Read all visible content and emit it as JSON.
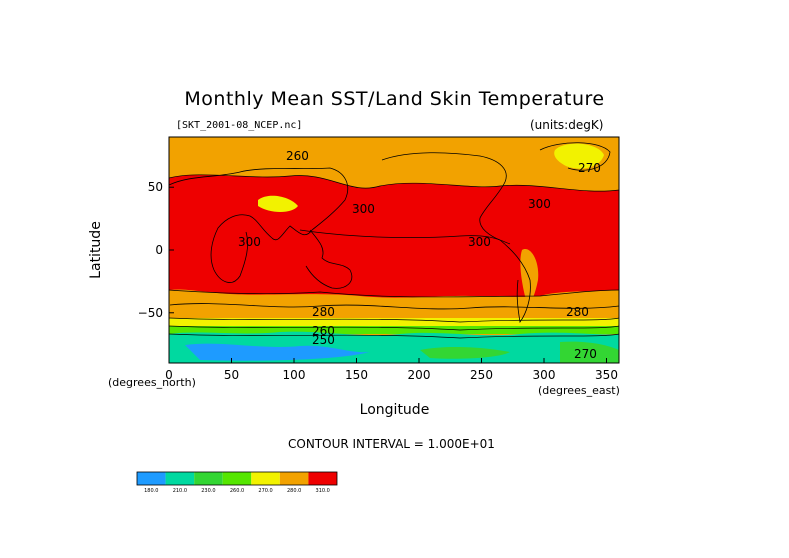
{
  "chart_data": {
    "type": "contour_map",
    "title": "Monthly Mean SST/Land Skin Temperature",
    "file": "[SKT_2001-08_NCEP.nc]",
    "units": "(units:degK)",
    "xlabel": "Longitude",
    "ylabel": "Latitude",
    "x_unit": "(degrees_east)",
    "y_unit": "(degrees_north)",
    "xlim": [
      0,
      360
    ],
    "ylim": [
      -90,
      90
    ],
    "x_ticks": [
      "0",
      "50",
      "100",
      "150",
      "200",
      "250",
      "300",
      "350"
    ],
    "y_ticks": [
      "50",
      "0",
      "−50"
    ],
    "contour_interval": "CONTOUR INTERVAL = 1.000E+01",
    "contour_labels": [
      "300",
      "300",
      "300",
      "280",
      "280",
      "260",
      "250",
      "270",
      "270",
      "260",
      "300"
    ],
    "colorbar": {
      "colors": [
        "#1e9bff",
        "#00d9a0",
        "#33d633",
        "#55e600",
        "#f2f200",
        "#f2a200",
        "#ee0000"
      ],
      "labels": [
        "180.0",
        "210.0",
        "230.0",
        "260.0",
        "270.0",
        "280.0",
        "310.0"
      ]
    }
  }
}
